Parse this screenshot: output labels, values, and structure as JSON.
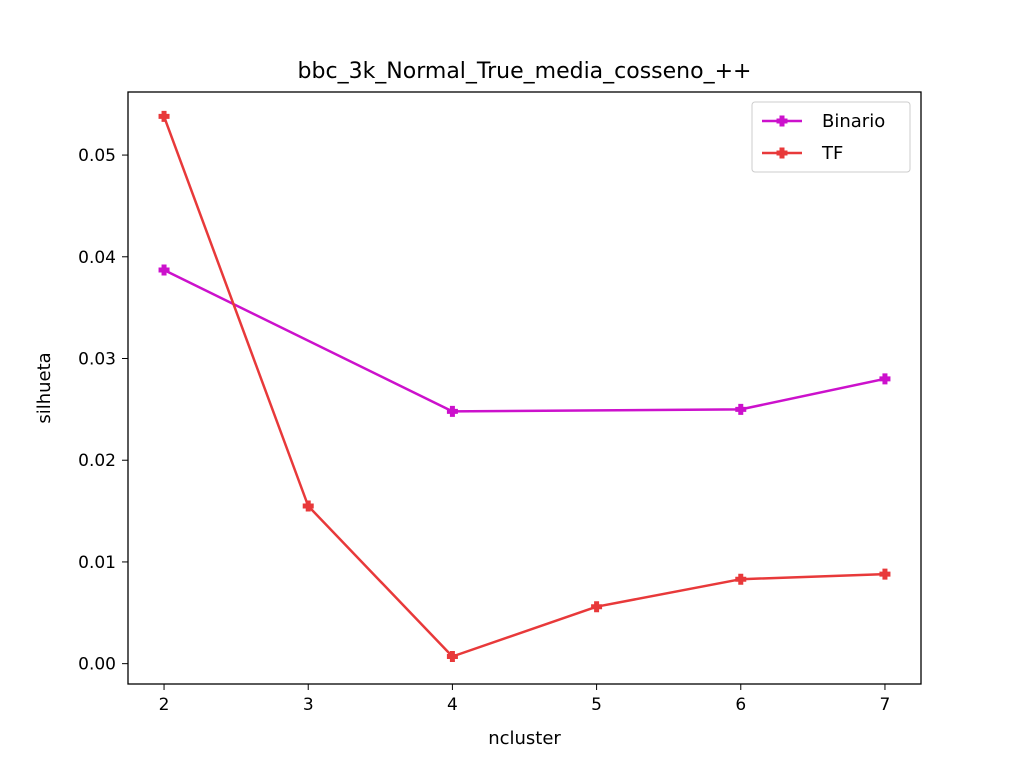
{
  "chart_data": {
    "type": "line",
    "title": "bbc_3k_Normal_True_media_cosseno_++",
    "xlabel": "ncluster",
    "ylabel": "silhueta",
    "x": [
      2,
      3,
      4,
      5,
      6,
      7
    ],
    "x_ticks": [
      "2",
      "3",
      "4",
      "5",
      "6",
      "7"
    ],
    "y_ticks": [
      "0.00",
      "0.01",
      "0.02",
      "0.03",
      "0.04",
      "0.05"
    ],
    "xlim": [
      1.75,
      7.25
    ],
    "ylim": [
      -0.002,
      0.0562
    ],
    "grid": false,
    "legend_position": "top-right",
    "series": [
      {
        "name": "Binario",
        "color": "#cc11cc",
        "marker": "plus-filled",
        "x": [
          2,
          4,
          6,
          7
        ],
        "values": [
          0.0387,
          0.0248,
          0.025,
          0.028
        ]
      },
      {
        "name": "TF",
        "color": "#e8393a",
        "marker": "plus-filled",
        "x": [
          2,
          3,
          4,
          5,
          6,
          7
        ],
        "values": [
          0.0538,
          0.0155,
          0.0007,
          0.0056,
          0.0083,
          0.0088
        ]
      }
    ]
  }
}
